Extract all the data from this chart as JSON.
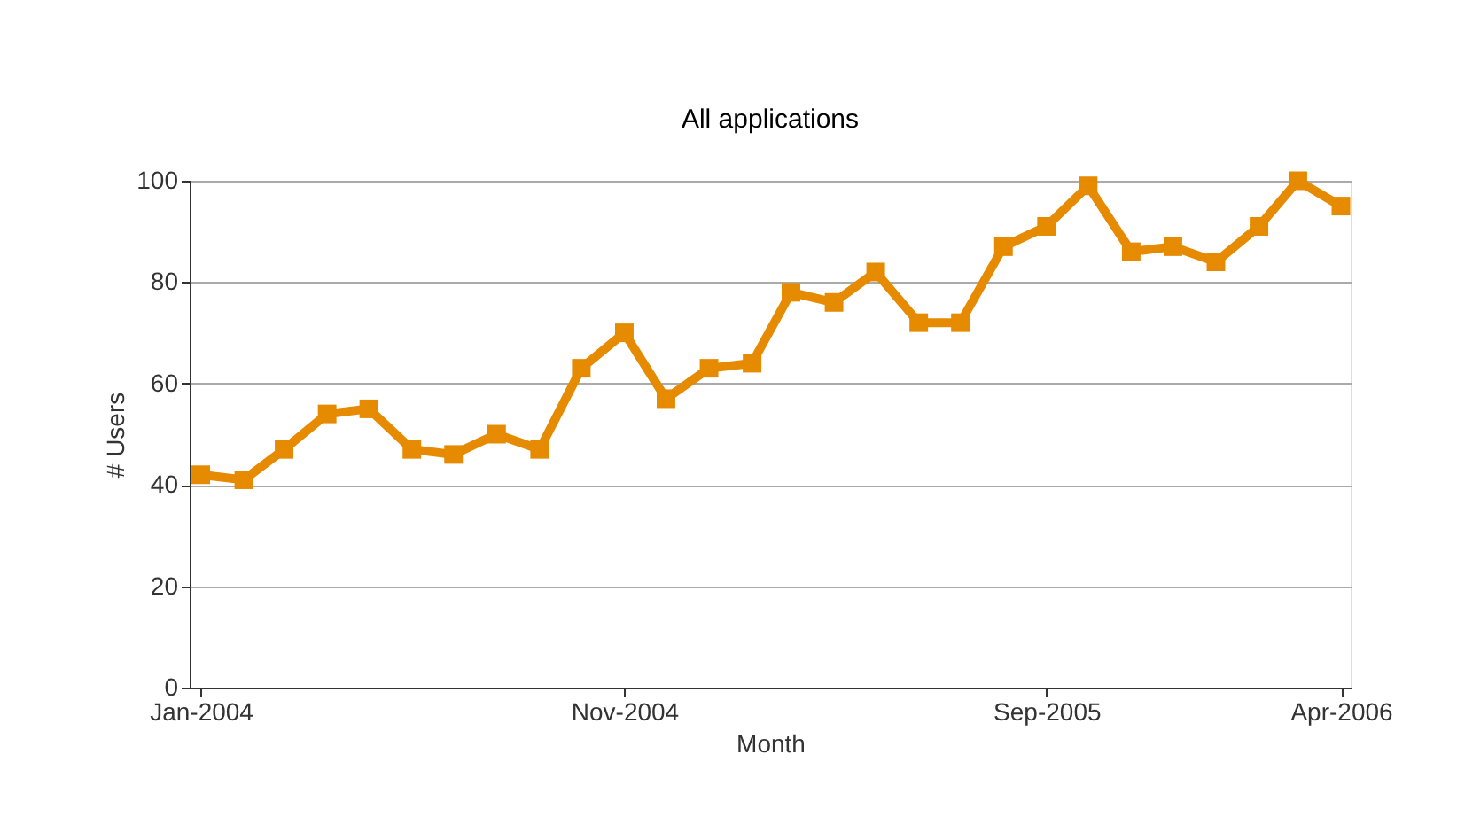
{
  "chart_data": {
    "type": "line",
    "title": "All applications",
    "xlabel": "Month",
    "ylabel": "# Users",
    "x": [
      "2004-01",
      "2004-02",
      "2004-03",
      "2004-04",
      "2004-05",
      "2004-06",
      "2004-07",
      "2004-08",
      "2004-09",
      "2004-10",
      "2004-11",
      "2004-12",
      "2005-01",
      "2005-02",
      "2005-03",
      "2005-04",
      "2005-05",
      "2005-06",
      "2005-07",
      "2005-08",
      "2005-09",
      "2005-10",
      "2005-11",
      "2005-12",
      "2006-01",
      "2006-02",
      "2006-03",
      "2006-04"
    ],
    "series": [
      {
        "color": "#e68a00",
        "values": [
          42,
          41,
          47,
          54,
          55,
          47,
          46,
          50,
          47,
          63,
          70,
          57,
          63,
          64,
          78,
          76,
          82,
          72,
          72,
          87,
          91,
          99,
          86,
          87,
          84,
          91,
          100,
          95
        ]
      }
    ],
    "xlim": [
      "2003-12-24",
      "2006-04-08"
    ],
    "xticks": [
      {
        "value": "2004-01",
        "label": "Jan-2004"
      },
      {
        "value": "2004-11",
        "label": "Nov-2004"
      },
      {
        "value": "2005-09",
        "label": "Sep-2005"
      },
      {
        "value": "2006-04",
        "label": "Apr-2006"
      }
    ],
    "ylim": [
      0,
      100
    ],
    "yticks": [
      0,
      20,
      40,
      60,
      80,
      100
    ],
    "grid": "y",
    "marker": "square",
    "line_style": "solid",
    "legend": false
  }
}
